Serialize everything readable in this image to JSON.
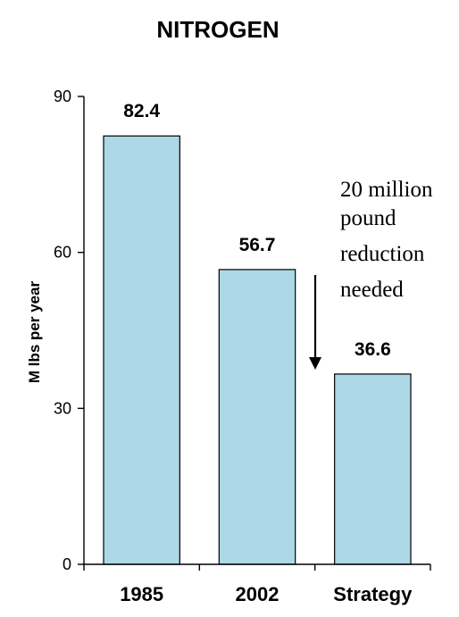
{
  "chart_data": {
    "type": "bar",
    "title": "NITROGEN",
    "ylabel": "M lbs per year",
    "xlabel": "",
    "categories": [
      "1985",
      "2002",
      "Strategy"
    ],
    "values": [
      82.4,
      56.7,
      36.6
    ],
    "data_labels": [
      "82.4",
      "56.7",
      "36.6"
    ],
    "ylim": [
      0,
      90
    ],
    "yticks": [
      0,
      30,
      60,
      90
    ],
    "ytick_labels": [
      "0",
      "30",
      "60",
      "90"
    ],
    "bar_color": "#add8e6",
    "grid": false,
    "legend": "none",
    "annotation": {
      "lines": [
        "20 million",
        "pound",
        "reduction",
        "needed"
      ],
      "arrow": "down"
    }
  }
}
